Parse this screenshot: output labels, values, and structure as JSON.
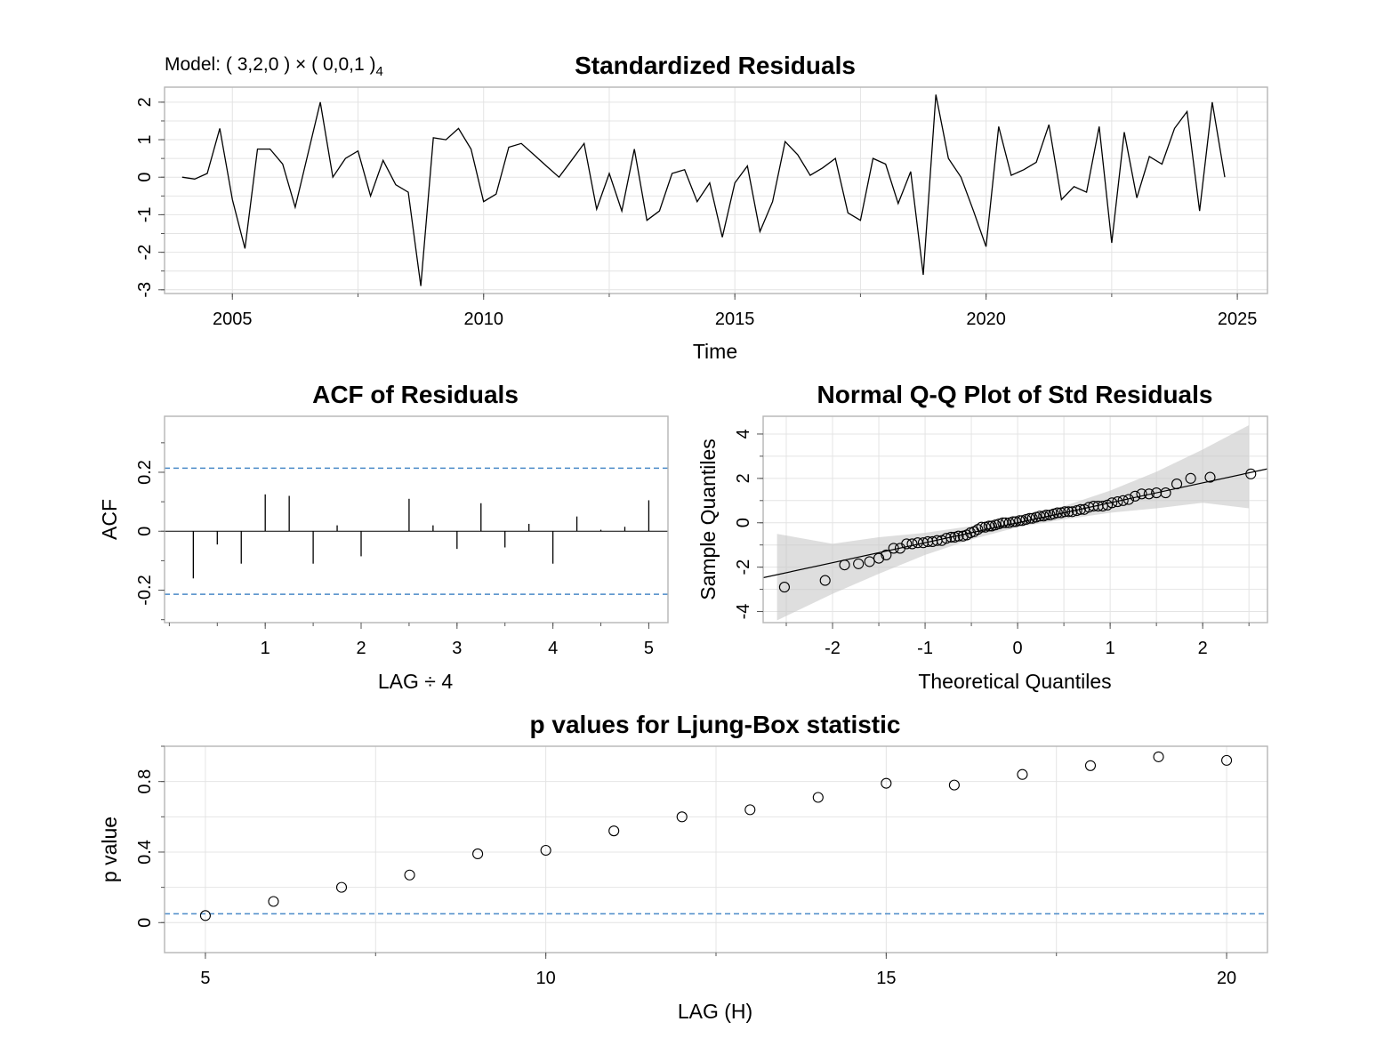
{
  "model_label": "Model: ( 3,2,0 ) × ( 0,0,1 )",
  "model_period": "4",
  "chart_data": [
    {
      "type": "line",
      "title": "Standardized Residuals",
      "xlabel": "Time",
      "ylabel": "",
      "xlim": [
        2003.65,
        2025.6
      ],
      "ylim": [
        -3.1,
        2.4
      ],
      "xticks": [
        2005,
        2010,
        2015,
        2020,
        2025
      ],
      "yticks": [
        -3,
        -2,
        -1,
        0,
        1,
        2
      ],
      "grid": true,
      "x_start": 2004.0,
      "x_step": 0.25,
      "values": [
        0.0,
        -0.05,
        0.1,
        1.3,
        -0.6,
        -1.9,
        0.75,
        0.75,
        0.35,
        -0.8,
        0.6,
        2.0,
        0.0,
        0.5,
        0.7,
        -0.5,
        0.45,
        -0.2,
        -0.4,
        -2.9,
        1.05,
        1.0,
        1.3,
        0.75,
        -0.65,
        -0.45,
        0.8,
        0.9,
        0.6,
        0.3,
        0.0,
        0.45,
        0.9,
        -0.85,
        0.1,
        -0.9,
        0.75,
        -1.15,
        -0.9,
        0.1,
        0.2,
        -0.65,
        -0.15,
        -1.6,
        -0.15,
        0.3,
        -1.45,
        -0.65,
        0.95,
        0.6,
        0.05,
        0.25,
        0.5,
        -0.95,
        -1.15,
        0.5,
        0.35,
        -0.7,
        0.15,
        -2.6,
        2.2,
        0.5,
        0.0,
        -0.9,
        -1.85,
        1.35,
        0.05,
        0.2,
        0.4,
        1.4,
        -0.6,
        -0.25,
        -0.4,
        1.35,
        -1.75,
        1.2,
        -0.55,
        0.55,
        0.35,
        1.3,
        1.75,
        -0.9,
        2.0,
        0.0
      ]
    },
    {
      "type": "bar",
      "title": "ACF of Residuals",
      "xlabel": "LAG ÷ 4",
      "ylabel": "ACF",
      "xlim": [
        -0.05,
        5.2
      ],
      "ylim": [
        -0.31,
        0.39
      ],
      "xticks": [
        1,
        2,
        3,
        4,
        5
      ],
      "yticks": [
        -0.2,
        0.0,
        0.2
      ],
      "confidence_band": [
        -0.214,
        0.214
      ],
      "grid": false,
      "lags": [
        0.25,
        0.5,
        0.75,
        1.0,
        1.25,
        1.5,
        1.75,
        2.0,
        2.25,
        2.5,
        2.75,
        3.0,
        3.25,
        3.5,
        3.75,
        4.0,
        4.25,
        4.5,
        4.75,
        5.0
      ],
      "values": [
        -0.16,
        -0.045,
        -0.11,
        0.125,
        0.12,
        -0.11,
        0.02,
        -0.085,
        0.0,
        0.11,
        0.02,
        -0.06,
        0.095,
        -0.055,
        0.025,
        -0.11,
        0.05,
        0.005,
        0.015,
        0.105
      ]
    },
    {
      "type": "scatter",
      "title": "Normal Q-Q Plot of Std Residuals",
      "xlabel": "Theoretical Quantiles",
      "ylabel": "Sample Quantiles",
      "xlim": [
        -2.75,
        2.7
      ],
      "ylim": [
        -4.5,
        4.8
      ],
      "xticks": [
        -2,
        -1,
        0,
        1,
        2
      ],
      "yticks": [
        -4,
        -2,
        0,
        2,
        4
      ],
      "grid": true,
      "reference_line": {
        "intercept": 0.0,
        "slope": 0.9
      },
      "band": {
        "x": [
          -2.6,
          -2.0,
          -1.5,
          -1.0,
          -0.5,
          0.0,
          0.5,
          1.0,
          1.5,
          2.0,
          2.5
        ],
        "upper": [
          -0.5,
          -0.95,
          -0.65,
          -0.45,
          -0.15,
          0.2,
          0.75,
          1.45,
          2.3,
          3.3,
          4.4
        ],
        "lower": [
          -4.4,
          -3.2,
          -2.3,
          -1.45,
          -0.75,
          -0.2,
          0.15,
          0.45,
          0.65,
          0.9,
          0.65
        ]
      },
      "points": [
        [
          -2.52,
          -2.9
        ],
        [
          -2.08,
          -2.6
        ],
        [
          -1.87,
          -1.9
        ],
        [
          -1.72,
          -1.85
        ],
        [
          -1.6,
          -1.75
        ],
        [
          -1.5,
          -1.6
        ],
        [
          -1.42,
          -1.45
        ],
        [
          -1.34,
          -1.15
        ],
        [
          -1.27,
          -1.15
        ],
        [
          -1.2,
          -0.95
        ],
        [
          -1.14,
          -0.95
        ],
        [
          -1.08,
          -0.9
        ],
        [
          -1.02,
          -0.9
        ],
        [
          -0.97,
          -0.85
        ],
        [
          -0.92,
          -0.85
        ],
        [
          -0.87,
          -0.8
        ],
        [
          -0.82,
          -0.8
        ],
        [
          -0.77,
          -0.7
        ],
        [
          -0.72,
          -0.65
        ],
        [
          -0.68,
          -0.65
        ],
        [
          -0.64,
          -0.6
        ],
        [
          -0.59,
          -0.6
        ],
        [
          -0.55,
          -0.55
        ],
        [
          -0.51,
          -0.45
        ],
        [
          -0.47,
          -0.4
        ],
        [
          -0.43,
          -0.3
        ],
        [
          -0.39,
          -0.2
        ],
        [
          -0.35,
          -0.2
        ],
        [
          -0.31,
          -0.15
        ],
        [
          -0.28,
          -0.15
        ],
        [
          -0.24,
          -0.1
        ],
        [
          -0.2,
          -0.05
        ],
        [
          -0.16,
          0.0
        ],
        [
          -0.13,
          0.0
        ],
        [
          -0.09,
          0.0
        ],
        [
          -0.05,
          0.05
        ],
        [
          -0.02,
          0.05
        ],
        [
          0.02,
          0.1
        ],
        [
          0.05,
          0.1
        ],
        [
          0.09,
          0.15
        ],
        [
          0.13,
          0.2
        ],
        [
          0.16,
          0.2
        ],
        [
          0.2,
          0.25
        ],
        [
          0.24,
          0.3
        ],
        [
          0.28,
          0.3
        ],
        [
          0.31,
          0.35
        ],
        [
          0.35,
          0.35
        ],
        [
          0.39,
          0.4
        ],
        [
          0.43,
          0.45
        ],
        [
          0.47,
          0.45
        ],
        [
          0.51,
          0.5
        ],
        [
          0.55,
          0.5
        ],
        [
          0.59,
          0.5
        ],
        [
          0.64,
          0.55
        ],
        [
          0.68,
          0.6
        ],
        [
          0.72,
          0.6
        ],
        [
          0.77,
          0.7
        ],
        [
          0.82,
          0.75
        ],
        [
          0.87,
          0.75
        ],
        [
          0.92,
          0.75
        ],
        [
          0.97,
          0.8
        ],
        [
          1.02,
          0.9
        ],
        [
          1.08,
          0.95
        ],
        [
          1.14,
          1.0
        ],
        [
          1.2,
          1.05
        ],
        [
          1.27,
          1.2
        ],
        [
          1.34,
          1.3
        ],
        [
          1.42,
          1.3
        ],
        [
          1.5,
          1.35
        ],
        [
          1.6,
          1.35
        ],
        [
          1.72,
          1.75
        ],
        [
          1.87,
          2.0
        ],
        [
          2.08,
          2.05
        ],
        [
          2.52,
          2.2
        ]
      ]
    },
    {
      "type": "scatter",
      "title": "p values for Ljung-Box statistic",
      "xlabel": "LAG (H)",
      "ylabel": "p value",
      "xlim": [
        4.4,
        20.6
      ],
      "ylim": [
        -0.17,
        1.0
      ],
      "xticks": [
        5,
        10,
        15,
        20
      ],
      "yticks": [
        0.0,
        0.4,
        0.8
      ],
      "grid": true,
      "significance_line": 0.05,
      "x": [
        5,
        6,
        7,
        8,
        9,
        10,
        11,
        12,
        13,
        14,
        15,
        16,
        17,
        18,
        19,
        20
      ],
      "values": [
        0.04,
        0.12,
        0.2,
        0.27,
        0.39,
        0.41,
        0.52,
        0.6,
        0.64,
        0.71,
        0.79,
        0.78,
        0.84,
        0.89,
        0.94,
        0.92
      ]
    }
  ]
}
